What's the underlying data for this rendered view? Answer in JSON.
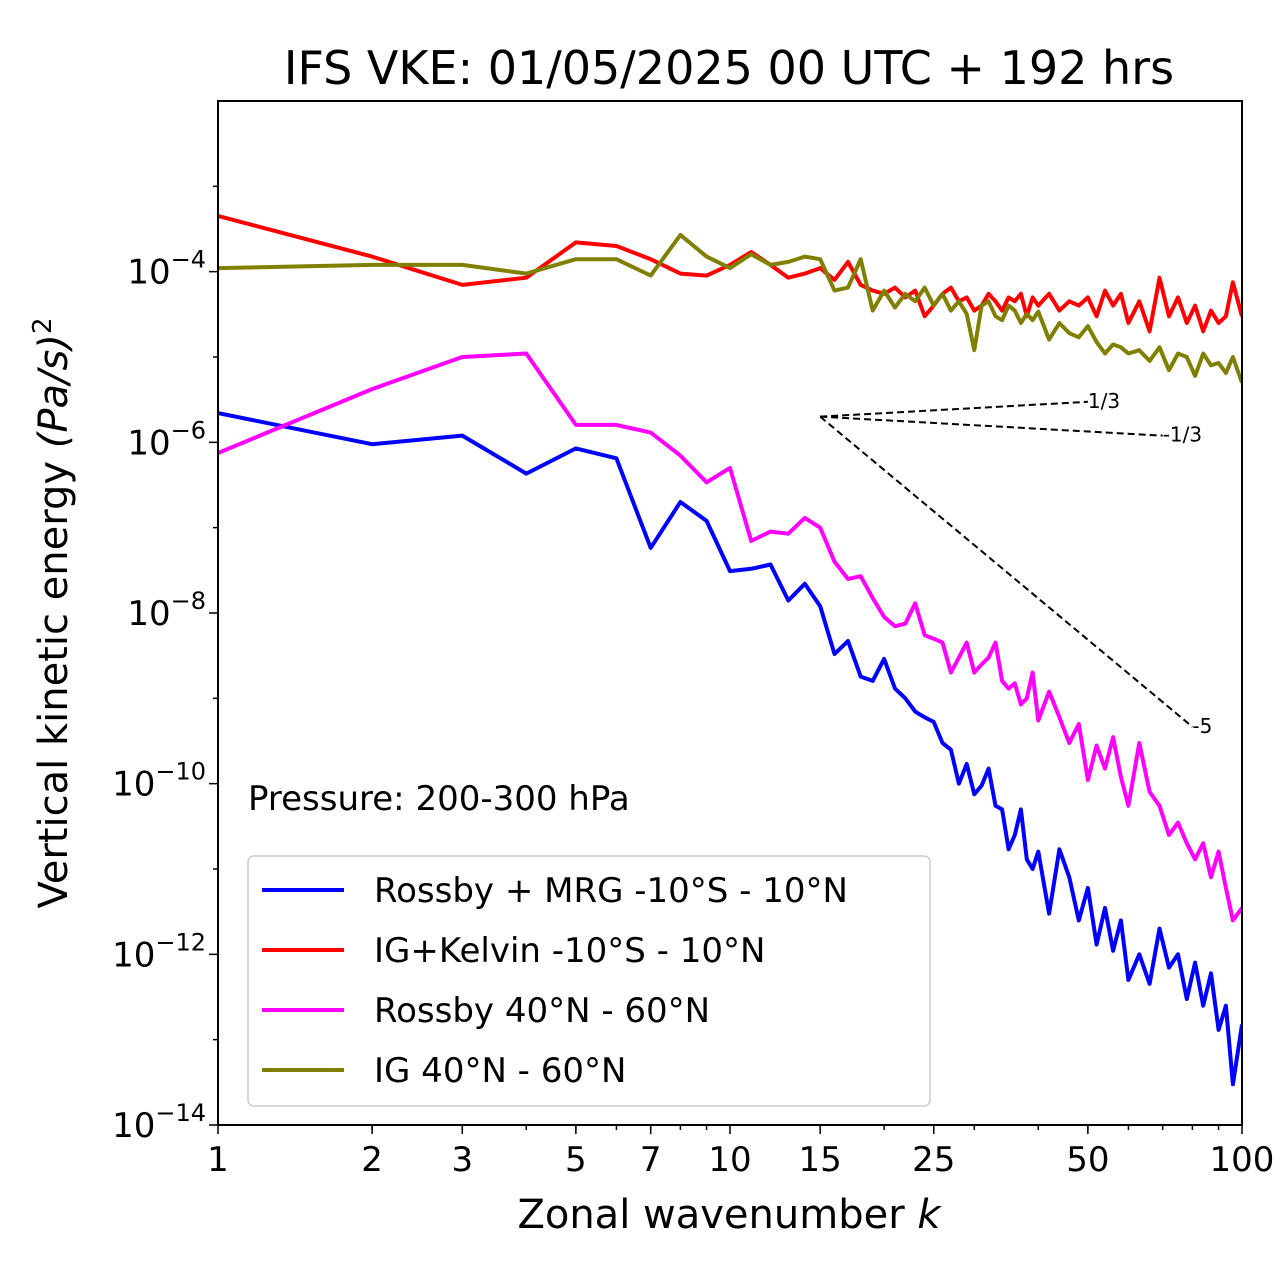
{
  "chart_data": {
    "type": "line",
    "title": "IFS VKE: 01/05/2025 00 UTC + 192 hrs",
    "xlabel": "Zonal wavenumber",
    "xlabel_var": "k",
    "ylabel": "Vertical kinetic energy",
    "ylabel_unit": "(Pa/s)",
    "ylabel_unit_exp": "2",
    "xscale": "log",
    "yscale": "log",
    "xlim": [
      1,
      100
    ],
    "ylim": [
      1e-14,
      0.01
    ],
    "x_ticks": [
      {
        "value": 1,
        "label": "1"
      },
      {
        "value": 2,
        "label": "2"
      },
      {
        "value": 3,
        "label": "3"
      },
      {
        "value": 5,
        "label": "5"
      },
      {
        "value": 7,
        "label": "7"
      },
      {
        "value": 10,
        "label": "10"
      },
      {
        "value": 15,
        "label": "15"
      },
      {
        "value": 25,
        "label": "25"
      },
      {
        "value": 50,
        "label": "50"
      },
      {
        "value": 100,
        "label": "100"
      }
    ],
    "y_ticks": [
      {
        "value": 0.0001,
        "base": "10",
        "exp": "−4"
      },
      {
        "value": 1e-06,
        "base": "10",
        "exp": "−6"
      },
      {
        "value": 1e-08,
        "base": "10",
        "exp": "−8"
      },
      {
        "value": 1e-10,
        "base": "10",
        "exp": "−10"
      },
      {
        "value": 1e-12,
        "base": "10",
        "exp": "−12"
      },
      {
        "value": 1e-14,
        "base": "10",
        "exp": "−14"
      }
    ],
    "annotation": "Pressure: 200-300 hPa",
    "legend_position": "lower-left",
    "series": [
      {
        "name": "Rossby + MRG -10°S - 10°N",
        "color": "#0000ff",
        "x": [
          1,
          2,
          3,
          4,
          5,
          6,
          7,
          8,
          9,
          10,
          11,
          12,
          13,
          14,
          15,
          16,
          17,
          18,
          19,
          20,
          21,
          22,
          23,
          24,
          25,
          26,
          27,
          28,
          29,
          30,
          31,
          32,
          33,
          34,
          35,
          36,
          37,
          38,
          39,
          40,
          42,
          44,
          46,
          48,
          50,
          52,
          54,
          56,
          58,
          60,
          63,
          66,
          69,
          72,
          75,
          78,
          81,
          84,
          87,
          90,
          93,
          96,
          100
        ],
        "y": [
          2.2e-06,
          9.5e-07,
          1.2e-06,
          4.3e-07,
          8.5e-07,
          6.5e-07,
          5.8e-08,
          2e-07,
          1.2e-07,
          3.1e-08,
          3.3e-08,
          3.7e-08,
          1.4e-08,
          2.2e-08,
          1.2e-08,
          3.3e-09,
          4.7e-09,
          1.8e-09,
          1.6e-09,
          2.9e-09,
          1.3e-09,
          1e-09,
          7e-10,
          6e-10,
          5.3e-10,
          3e-10,
          2.5e-10,
          1e-10,
          1.7e-10,
          7.5e-11,
          9.5e-11,
          1.5e-10,
          5.5e-11,
          5e-11,
          1.7e-11,
          2.5e-11,
          5e-11,
          1.3e-11,
          1e-11,
          1.6e-11,
          3e-12,
          1.7e-11,
          8e-12,
          2.5e-12,
          6e-12,
          1.3e-12,
          3.5e-12,
          1.1e-12,
          2.5e-12,
          5e-13,
          1e-12,
          4.5e-13,
          2e-12,
          7e-13,
          1e-12,
          3e-13,
          8e-13,
          2.5e-13,
          6e-13,
          1.3e-13,
          2.5e-13,
          3e-14,
          1.5e-13
        ]
      },
      {
        "name": "IG+Kelvin -10°S - 10°N",
        "color": "#ff0000",
        "x": [
          1,
          2,
          3,
          4,
          5,
          6,
          7,
          8,
          9,
          10,
          11,
          12,
          13,
          14,
          15,
          16,
          17,
          18,
          19,
          20,
          21,
          22,
          23,
          24,
          25,
          26,
          27,
          28,
          29,
          30,
          31,
          32,
          33,
          34,
          35,
          36,
          37,
          38,
          39,
          40,
          42,
          44,
          46,
          48,
          50,
          52,
          54,
          56,
          58,
          60,
          63,
          66,
          69,
          72,
          75,
          78,
          81,
          84,
          87,
          90,
          93,
          96,
          100
        ],
        "y": [
          0.00045,
          0.00015,
          7e-05,
          8.5e-05,
          0.00022,
          0.0002,
          0.00014,
          9.5e-05,
          9e-05,
          0.00012,
          0.00017,
          0.00012,
          8.5e-05,
          9.5e-05,
          0.00011,
          8e-05,
          0.00013,
          7e-05,
          6e-05,
          5.5e-05,
          6.5e-05,
          5e-05,
          6e-05,
          3e-05,
          4e-05,
          5.5e-05,
          6.5e-05,
          4.5e-05,
          5e-05,
          3.5e-05,
          4e-05,
          5.5e-05,
          4.5e-05,
          3.5e-05,
          5e-05,
          4.5e-05,
          5.5e-05,
          3e-05,
          5e-05,
          4e-05,
          5.5e-05,
          3.5e-05,
          4.5e-05,
          4e-05,
          5e-05,
          3e-05,
          6e-05,
          4e-05,
          5.5e-05,
          2.5e-05,
          4.5e-05,
          2e-05,
          8.5e-05,
          3e-05,
          5e-05,
          2.5e-05,
          4e-05,
          2e-05,
          3.5e-05,
          2.5e-05,
          3e-05,
          7.5e-05,
          3e-05
        ]
      },
      {
        "name": "Rossby 40°N - 60°N",
        "color": "#ff00ff",
        "x": [
          1,
          2,
          3,
          4,
          5,
          6,
          7,
          8,
          9,
          10,
          11,
          12,
          13,
          14,
          15,
          16,
          17,
          18,
          19,
          20,
          21,
          22,
          23,
          24,
          25,
          26,
          27,
          28,
          29,
          30,
          31,
          32,
          33,
          34,
          35,
          36,
          37,
          38,
          39,
          40,
          42,
          44,
          46,
          48,
          50,
          52,
          54,
          56,
          58,
          60,
          63,
          66,
          69,
          72,
          75,
          78,
          81,
          84,
          87,
          90,
          93,
          96,
          100
        ],
        "y": [
          7.5e-07,
          4.2e-06,
          1e-05,
          1.1e-05,
          1.6e-06,
          1.6e-06,
          1.3e-06,
          7e-07,
          3.4e-07,
          5e-07,
          7e-08,
          9e-08,
          8.5e-08,
          1.3e-07,
          1e-07,
          4e-08,
          2.5e-08,
          2.7e-08,
          1.5e-08,
          9e-09,
          7e-09,
          7.5e-09,
          1.3e-08,
          5.5e-09,
          5e-09,
          4.5e-09,
          2e-09,
          3e-09,
          4.5e-09,
          2e-09,
          2.5e-09,
          3e-09,
          4.5e-09,
          1.6e-09,
          1.3e-09,
          1.5e-09,
          8.5e-10,
          1e-09,
          2e-09,
          5.5e-10,
          1.2e-09,
          6e-10,
          3e-10,
          5e-10,
          1.1e-10,
          2.8e-10,
          1.5e-10,
          3.5e-10,
          1.2e-10,
          5.5e-11,
          3e-10,
          8e-11,
          5.5e-11,
          2.5e-11,
          3.5e-11,
          2e-11,
          1.3e-11,
          2e-11,
          8e-12,
          1.6e-11,
          6e-12,
          2.5e-12,
          3.5e-12
        ]
      },
      {
        "name": "IG 40°N - 60°N",
        "color": "#808000",
        "x": [
          1,
          2,
          3,
          4,
          5,
          6,
          7,
          8,
          9,
          10,
          11,
          12,
          13,
          14,
          15,
          16,
          17,
          18,
          19,
          20,
          21,
          22,
          23,
          24,
          25,
          26,
          27,
          28,
          29,
          30,
          31,
          32,
          33,
          34,
          35,
          36,
          37,
          38,
          39,
          40,
          42,
          44,
          46,
          48,
          50,
          52,
          54,
          56,
          58,
          60,
          63,
          66,
          69,
          72,
          75,
          78,
          81,
          84,
          87,
          90,
          93,
          96,
          100
        ],
        "y": [
          0.00011,
          0.00012,
          0.00012,
          9.5e-05,
          0.00014,
          0.00014,
          9e-05,
          0.00027,
          0.00015,
          0.00011,
          0.00016,
          0.00012,
          0.00013,
          0.00015,
          0.00014,
          6e-05,
          6.5e-05,
          0.00014,
          3.5e-05,
          6e-05,
          3.8e-05,
          5.5e-05,
          4.5e-05,
          6.5e-05,
          4e-05,
          5.5e-05,
          3.5e-05,
          4.5e-05,
          3.2e-05,
          1.2e-05,
          4e-05,
          4.5e-05,
          3e-05,
          2.7e-05,
          4e-05,
          3.5e-05,
          2.5e-05,
          3.2e-05,
          2.7e-05,
          3.4e-05,
          1.6e-05,
          2.5e-05,
          1.9e-05,
          1.7e-05,
          2.3e-05,
          1.5e-05,
          1.1e-05,
          1.4e-05,
          1.3e-05,
          1.1e-05,
          1.2e-05,
          9e-06,
          1.3e-05,
          7e-06,
          1.1e-05,
          1e-05,
          6e-06,
          1.1e-05,
          8e-06,
          8.5e-06,
          6.5e-06,
          1e-05,
          5e-06
        ]
      }
    ],
    "reference_slopes": [
      {
        "label": "1/3",
        "x_start": 15,
        "y_start": 2e-06,
        "x_end": 50
      },
      {
        "label": "-1/3",
        "x_start": 15,
        "y_start": 2e-06,
        "x_end": 70
      },
      {
        "label": "-5",
        "x_start": 15,
        "y_start": 2e-06,
        "x_end": 80
      }
    ]
  }
}
